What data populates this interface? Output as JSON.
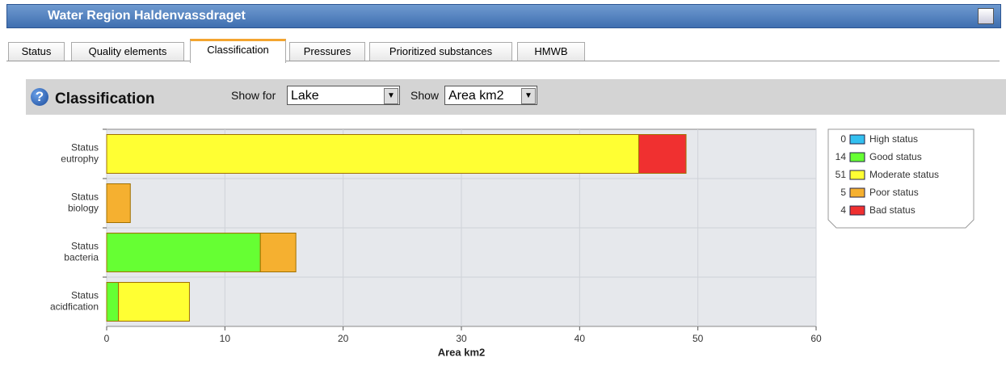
{
  "header": {
    "title": "Water Region Haldenvassdraget"
  },
  "tabs": [
    "Status",
    "Quality elements",
    "Classification",
    "Pressures",
    "Prioritized substances",
    "HMWB"
  ],
  "toolbar": {
    "title": "Classification",
    "show_for_label": "Show for",
    "show_for_value": "Lake",
    "show_label": "Show",
    "show_value": "Area km2"
  },
  "chart_data": {
    "type": "stacked_bar_horizontal",
    "categories": [
      [
        "Status",
        "eutrophy"
      ],
      [
        "Status",
        "biology"
      ],
      [
        "Status",
        "bacteria"
      ],
      [
        "Status",
        "acidfication"
      ]
    ],
    "series": [
      {
        "name": "High status",
        "color": "#33c0f0",
        "count": 0,
        "values": [
          0,
          0,
          0,
          0
        ]
      },
      {
        "name": "Good status",
        "color": "#66ff33",
        "count": 14,
        "values": [
          0,
          0,
          13,
          1
        ]
      },
      {
        "name": "Moderate status",
        "color": "#ffff33",
        "count": 51,
        "values": [
          45,
          0,
          0,
          6
        ]
      },
      {
        "name": "Poor status",
        "color": "#f5b030",
        "count": 5,
        "values": [
          0,
          2,
          3,
          0
        ]
      },
      {
        "name": "Bad status",
        "color": "#f03030",
        "count": 4,
        "values": [
          4,
          0,
          0,
          0
        ]
      }
    ],
    "xlim": [
      0,
      60
    ],
    "xticks": [
      0,
      10,
      20,
      30,
      40,
      50,
      60
    ],
    "x_label": "Area km2",
    "grid": true
  }
}
